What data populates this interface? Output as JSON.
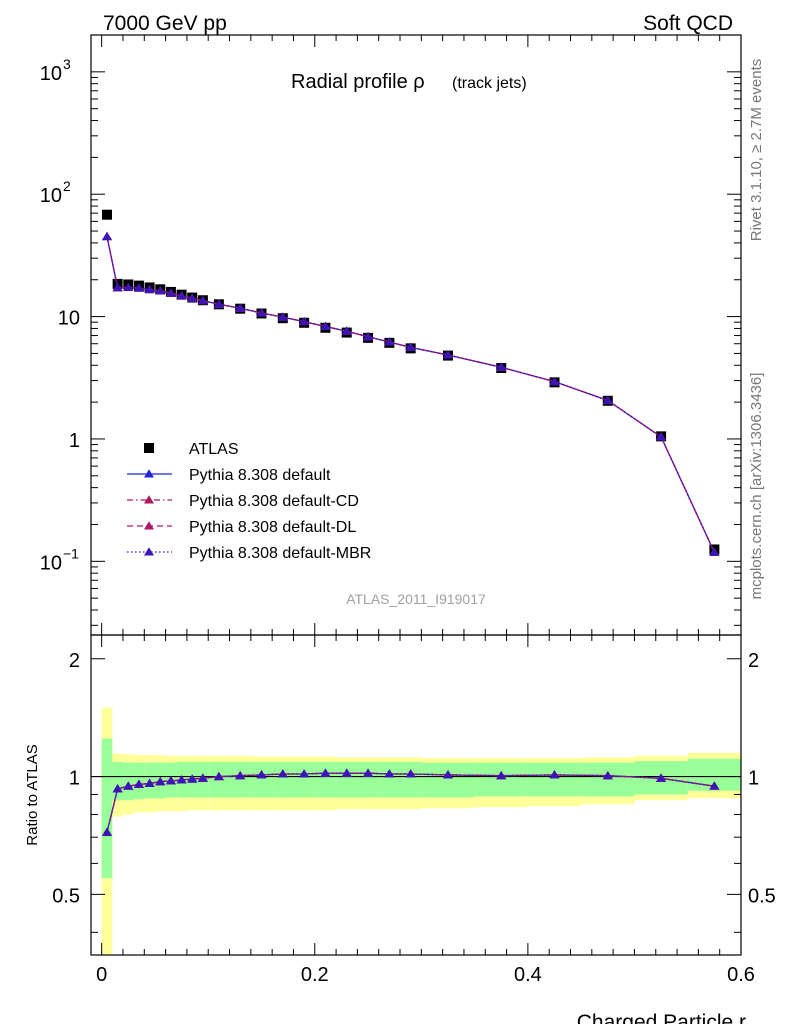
{
  "header": {
    "left": "7000 GeV pp",
    "right": "Soft QCD"
  },
  "side_labels": {
    "rivet": "Rivet 3.1.10, ≥ 2.7M events",
    "source": "mcplots.cern.ch [arXiv:1306.3436]"
  },
  "plot_title": {
    "main": "Radial profile ρ",
    "sub": "(track jets)"
  },
  "analysis_id": "ATLAS_2011_I919017",
  "colors": {
    "data": "#000000",
    "default": "#1f26d6",
    "cd": "#b0165a",
    "dl": "#b0166e",
    "mbr": "#3a16b8",
    "band_inner": "#99ff99",
    "band_outer": "#ffff99"
  },
  "legend": [
    {
      "key": "data",
      "label": "ATLAS",
      "marker": "square",
      "line": "none"
    },
    {
      "key": "default",
      "label": "Pythia 8.308 default",
      "marker": "triangle",
      "line": "solid"
    },
    {
      "key": "cd",
      "label": "Pythia 8.308 default-CD",
      "marker": "triangle",
      "line": "dashdot"
    },
    {
      "key": "dl",
      "label": "Pythia 8.308 default-DL",
      "marker": "triangle",
      "line": "dashed"
    },
    {
      "key": "mbr",
      "label": "Pythia 8.308 default-MBR",
      "marker": "triangle",
      "line": "dotted"
    }
  ],
  "chart_data": {
    "type": "line",
    "title": "Radial profile ρ (track jets)",
    "xlabel": "Charged Particle r",
    "ylabel_main": "",
    "ylabel_ratio": "Ratio to ATLAS",
    "xlim": [
      -0.01,
      0.6
    ],
    "ylim_main": [
      0.025,
      2000
    ],
    "yscale_main": "log",
    "ylim_ratio": [
      0.35,
      2.3
    ],
    "yscale_ratio": "log",
    "legend_position": "lower-left",
    "x_ticks": [
      "0",
      "0.2",
      "0.4",
      "0.6"
    ],
    "y_ticks_main": [
      {
        "value": 1000,
        "base": "10",
        "exp": "3"
      },
      {
        "value": 100,
        "base": "10",
        "exp": "2"
      },
      {
        "value": 10,
        "base": "10",
        "exp": ""
      },
      {
        "value": 1,
        "base": "1",
        "exp": ""
      },
      {
        "value": 0.1,
        "base": "10",
        "exp": "−1"
      }
    ],
    "y_ticks_ratio": [
      {
        "value": 2,
        "label": "2"
      },
      {
        "value": 1,
        "label": "1"
      },
      {
        "value": 0.5,
        "label": "0.5"
      }
    ],
    "bin_edges": [
      0,
      0.01,
      0.02,
      0.03,
      0.04,
      0.05,
      0.06,
      0.07,
      0.08,
      0.09,
      0.1,
      0.12,
      0.14,
      0.16,
      0.18,
      0.2,
      0.22,
      0.24,
      0.26,
      0.28,
      0.3,
      0.35,
      0.4,
      0.45,
      0.5,
      0.55,
      0.6
    ],
    "x": [
      0.005,
      0.015,
      0.025,
      0.035,
      0.045,
      0.055,
      0.065,
      0.075,
      0.085,
      0.095,
      0.11,
      0.13,
      0.15,
      0.17,
      0.19,
      0.21,
      0.23,
      0.25,
      0.27,
      0.29,
      0.325,
      0.375,
      0.425,
      0.475,
      0.525,
      0.575
    ],
    "series": [
      {
        "name": "ATLAS",
        "key": "data",
        "values": [
          68,
          18.5,
          18.3,
          17.9,
          17.3,
          16.7,
          15.9,
          15.1,
          14.3,
          13.6,
          12.6,
          11.6,
          10.6,
          9.7,
          8.9,
          8.1,
          7.4,
          6.7,
          6.1,
          5.5,
          4.8,
          3.8,
          2.9,
          2.05,
          1.05,
          0.125
        ]
      },
      {
        "name": "Pythia 8.308 default",
        "key": "default",
        "values": [
          45,
          17.2,
          17.3,
          17.1,
          16.6,
          16.2,
          15.5,
          14.8,
          14.1,
          13.5,
          12.6,
          11.7,
          10.7,
          9.9,
          9.1,
          8.3,
          7.6,
          6.85,
          6.2,
          5.6,
          4.85,
          3.85,
          2.94,
          2.06,
          1.04,
          0.118
        ]
      },
      {
        "name": "Pythia 8.308 default-CD",
        "key": "cd",
        "values": [
          45,
          17.2,
          17.3,
          17.1,
          16.6,
          16.2,
          15.5,
          14.8,
          14.1,
          13.5,
          12.6,
          11.7,
          10.7,
          9.9,
          9.1,
          8.3,
          7.6,
          6.85,
          6.2,
          5.6,
          4.85,
          3.85,
          2.94,
          2.06,
          1.04,
          0.118
        ]
      },
      {
        "name": "Pythia 8.308 default-DL",
        "key": "dl",
        "values": [
          45,
          17.2,
          17.3,
          17.1,
          16.6,
          16.2,
          15.5,
          14.8,
          14.1,
          13.5,
          12.6,
          11.7,
          10.7,
          9.9,
          9.1,
          8.3,
          7.6,
          6.85,
          6.2,
          5.6,
          4.85,
          3.85,
          2.94,
          2.06,
          1.04,
          0.118
        ]
      },
      {
        "name": "Pythia 8.308 default-MBR",
        "key": "mbr",
        "values": [
          45,
          17.2,
          17.3,
          17.1,
          16.6,
          16.2,
          15.5,
          14.8,
          14.1,
          13.5,
          12.6,
          11.7,
          10.7,
          9.9,
          9.1,
          8.3,
          7.6,
          6.85,
          6.2,
          5.6,
          4.85,
          3.85,
          2.94,
          2.06,
          1.04,
          0.118
        ]
      }
    ],
    "ratio": {
      "values": [
        0.72,
        0.93,
        0.945,
        0.955,
        0.96,
        0.97,
        0.975,
        0.98,
        0.985,
        0.99,
        1.0,
        1.005,
        1.01,
        1.015,
        1.015,
        1.02,
        1.02,
        1.02,
        1.015,
        1.015,
        1.01,
        1.005,
        1.01,
        1.005,
        0.99,
        0.945
      ],
      "band_inner_low": [
        0.55,
        0.87,
        0.87,
        0.875,
        0.88,
        0.88,
        0.885,
        0.885,
        0.885,
        0.885,
        0.885,
        0.885,
        0.885,
        0.885,
        0.885,
        0.885,
        0.885,
        0.885,
        0.885,
        0.885,
        0.885,
        0.89,
        0.89,
        0.89,
        0.9,
        0.92
      ],
      "band_inner_high": [
        1.25,
        1.09,
        1.085,
        1.085,
        1.085,
        1.085,
        1.085,
        1.09,
        1.09,
        1.09,
        1.09,
        1.09,
        1.09,
        1.09,
        1.09,
        1.09,
        1.09,
        1.09,
        1.09,
        1.09,
        1.085,
        1.085,
        1.085,
        1.085,
        1.095,
        1.11
      ],
      "band_outer_low": [
        0.3,
        0.79,
        0.8,
        0.81,
        0.81,
        0.815,
        0.815,
        0.815,
        0.82,
        0.82,
        0.82,
        0.82,
        0.82,
        0.82,
        0.82,
        0.82,
        0.825,
        0.825,
        0.825,
        0.825,
        0.83,
        0.835,
        0.84,
        0.85,
        0.87,
        0.88
      ],
      "band_outer_high": [
        1.5,
        1.145,
        1.14,
        1.135,
        1.135,
        1.135,
        1.13,
        1.13,
        1.13,
        1.13,
        1.13,
        1.13,
        1.125,
        1.125,
        1.125,
        1.125,
        1.12,
        1.12,
        1.12,
        1.12,
        1.115,
        1.115,
        1.115,
        1.12,
        1.13,
        1.15
      ]
    }
  }
}
